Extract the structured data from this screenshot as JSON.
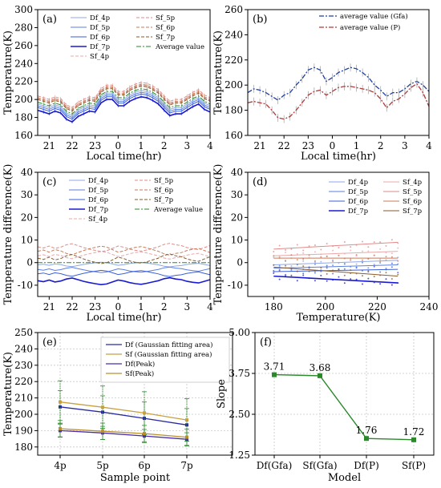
{
  "figure": {
    "colors": {
      "Df_4p": "#8fa6e8",
      "Df_5p": "#5b7fe0",
      "Df_6p": "#3a5fd6",
      "Df_7p": "#1a1ad0",
      "Sf_4p": "#e9a8a8",
      "Sf_5p": "#e08a8a",
      "Sf_6p": "#c97a5a",
      "Sf_7p": "#8a5a2a",
      "Average": "#2a8a2a",
      "Gfa": "#1f3fa0",
      "P": "#b03a3a",
      "DfGfa": "#2a2aa0",
      "SfGfa": "#c8a040",
      "DfPeak": "#4a2ab0",
      "SfPeak": "#b8902a",
      "slope": "#2a8a2a"
    }
  },
  "chart_data": [
    {
      "panel": "(a)",
      "type": "line",
      "xlabel": "Local time(hr)",
      "ylabel": "Temperature(K)",
      "xticks": [
        "21",
        "22",
        "23",
        "0",
        "1",
        "2",
        "3",
        "4"
      ],
      "yticks": [
        "160",
        "180",
        "200",
        "220",
        "240",
        "260",
        "280",
        "300"
      ],
      "xlim": [
        20.5,
        28
      ],
      "ylim": [
        160,
        300
      ],
      "legend": [
        "Df_4p",
        "Df_5p",
        "Df_6p",
        "Df_7p",
        "Sf_4p",
        "Sf_5p",
        "Sf_6p",
        "Sf_7p",
        "Average value"
      ],
      "x": [
        20.5,
        20.75,
        21,
        21.25,
        21.5,
        21.75,
        22,
        22.25,
        22.5,
        22.75,
        23,
        23.25,
        23.5,
        23.75,
        24,
        24.25,
        24.5,
        24.75,
        25,
        25.25,
        25.5,
        25.75,
        26,
        26.25,
        26.5,
        26.75,
        27,
        27.25,
        27.5,
        27.75,
        28
      ],
      "base": [
        197,
        195,
        193,
        196,
        194,
        187,
        184,
        190,
        193,
        196,
        195,
        205,
        209,
        209,
        202,
        202,
        207,
        210,
        212,
        211,
        208,
        204,
        197,
        191,
        193,
        193,
        197,
        201,
        204,
        198,
        195
      ],
      "series": [
        {
          "name": "Df_4p",
          "offset": -2
        },
        {
          "name": "Df_5p",
          "offset": -4
        },
        {
          "name": "Df_6p",
          "offset": -6
        },
        {
          "name": "Df_7p",
          "offset": -9
        },
        {
          "name": "Sf_4p",
          "offset": 4
        },
        {
          "name": "Sf_5p",
          "offset": 7
        },
        {
          "name": "Sf_6p",
          "offset": 5
        },
        {
          "name": "Sf_7p",
          "offset": 3
        },
        {
          "name": "Average value",
          "offset": 0
        }
      ]
    },
    {
      "panel": "(b)",
      "type": "line",
      "xlabel": "Local time(hr)",
      "ylabel": "Temperature(K)",
      "xticks": [
        "21",
        "22",
        "23",
        "0",
        "1",
        "2",
        "3",
        "4"
      ],
      "yticks": [
        "160",
        "180",
        "200",
        "220",
        "240",
        "260"
      ],
      "xlim": [
        20.5,
        28
      ],
      "ylim": [
        160,
        260
      ],
      "legend": [
        "average value (Gfa)",
        "average value (P)"
      ],
      "x": [
        20.5,
        20.75,
        21,
        21.25,
        21.5,
        21.75,
        22,
        22.25,
        22.5,
        22.75,
        23,
        23.25,
        23.5,
        23.75,
        24,
        24.25,
        24.5,
        24.75,
        25,
        25.25,
        25.5,
        25.75,
        26,
        26.25,
        26.5,
        26.75,
        27,
        27.25,
        27.5,
        27.75,
        28
      ],
      "series": [
        {
          "name": "average value (Gfa)",
          "values": [
            194,
            197,
            196,
            194,
            191,
            188,
            192,
            194,
            200,
            205,
            212,
            214,
            212,
            203,
            206,
            210,
            212,
            214,
            213,
            210,
            206,
            200,
            196,
            191,
            194,
            194,
            197,
            201,
            203,
            200,
            195
          ]
        },
        {
          "name": "average value (P)",
          "values": [
            186,
            187,
            186,
            185,
            180,
            174,
            173,
            175,
            180,
            186,
            192,
            195,
            196,
            192,
            195,
            198,
            199,
            199,
            198,
            197,
            196,
            194,
            189,
            182,
            187,
            189,
            193,
            198,
            201,
            194,
            183
          ]
        }
      ]
    },
    {
      "panel": "(c)",
      "type": "line",
      "xlabel": "Local time(hr)",
      "ylabel": "Temperature difference(K)",
      "xticks": [
        "21",
        "22",
        "23",
        "0",
        "1",
        "2",
        "3",
        "4"
      ],
      "yticks": [
        "-10",
        "0",
        "10",
        "20",
        "30",
        "40"
      ],
      "xlim": [
        20.5,
        28
      ],
      "ylim": [
        -15,
        40
      ],
      "legend": [
        "Df_4p",
        "Df_5p",
        "Df_6p",
        "Df_7p",
        "Sf_4p",
        "Sf_5p",
        "Sf_6p",
        "Sf_7p",
        "Average value"
      ],
      "x": [
        20.5,
        20.75,
        21,
        21.25,
        21.5,
        21.75,
        22,
        22.25,
        22.5,
        22.75,
        23,
        23.25,
        23.5,
        23.75,
        24,
        24.25,
        24.5,
        24.75,
        25,
        25.25,
        25.5,
        25.75,
        26,
        26.25,
        26.5,
        26.75,
        27,
        27.25,
        27.5,
        27.75,
        28
      ],
      "wiggle": [
        0,
        0.3,
        -0.2,
        0.4,
        0.1,
        -0.5,
        -0.8,
        -0.3,
        0.2,
        0.6,
        0.9,
        1.2,
        1.0,
        0.4,
        -0.2,
        0.1,
        0.6,
        0.9,
        1.1,
        0.8,
        0.4,
        0.0,
        -0.6,
        -0.9,
        -0.5,
        -0.3,
        0.2,
        0.5,
        0.7,
        0.2,
        -0.3
      ],
      "series": [
        {
          "name": "Df_4p",
          "level": -1
        },
        {
          "name": "Df_5p",
          "level": -3
        },
        {
          "name": "Df_6p",
          "level": -5
        },
        {
          "name": "Df_7p",
          "level": -8
        },
        {
          "name": "Sf_4p",
          "level": 3
        },
        {
          "name": "Sf_5p",
          "level": 7
        },
        {
          "name": "Sf_6p",
          "level": 5
        },
        {
          "name": "Sf_7p",
          "level": 2
        },
        {
          "name": "Average value",
          "level": 0
        }
      ]
    },
    {
      "panel": "(d)",
      "type": "scatter",
      "xlabel": "Temperature(K)",
      "ylabel": "Temperature difference(K)",
      "xticks": [
        "180",
        "200",
        "220",
        "240"
      ],
      "yticks": [
        "-10",
        "0",
        "10",
        "20",
        "30",
        "40"
      ],
      "xlim": [
        170,
        240
      ],
      "ylim": [
        -15,
        40
      ],
      "legend": [
        "Df_4p",
        "Df_5p",
        "Df_6p",
        "Df_7p",
        "Sf_4p",
        "Sf_5p",
        "Sf_6p",
        "Sf_7p"
      ],
      "fit_x": [
        180,
        228
      ],
      "series": [
        {
          "name": "Df_4p",
          "fit": [
            -1,
            1
          ]
        },
        {
          "name": "Df_5p",
          "fit": [
            -2.5,
            -1
          ]
        },
        {
          "name": "Df_6p",
          "fit": [
            -4,
            -3
          ]
        },
        {
          "name": "Df_7p",
          "fit": [
            -6,
            -9
          ]
        },
        {
          "name": "Sf_4p",
          "fit": [
            3,
            5
          ]
        },
        {
          "name": "Sf_5p",
          "fit": [
            6,
            9
          ]
        },
        {
          "name": "Sf_6p",
          "fit": [
            2,
            2
          ]
        },
        {
          "name": "Sf_7p",
          "fit": [
            -2,
            -6
          ]
        }
      ]
    },
    {
      "panel": "(e)",
      "type": "line",
      "xlabel": "Sample point",
      "ylabel": "Temperature(K)",
      "categories": [
        "4p",
        "5p",
        "6p",
        "7p"
      ],
      "yticks": [
        "180",
        "190",
        "200",
        "210",
        "220",
        "230",
        "240",
        "250"
      ],
      "ylim": [
        175,
        250
      ],
      "legend": [
        "Df (Gaussian fitting area)",
        "Sf (Gaussian fitting area)",
        "Df(Peak)",
        "Sf(Peak)"
      ],
      "series": [
        {
          "name": "Df (Gaussian fitting area)",
          "values": [
            204.5,
            201.3,
            197.5,
            193.5
          ],
          "err": 10
        },
        {
          "name": "Sf (Gaussian fitting area)",
          "values": [
            207.5,
            204.3,
            200.8,
            196.5
          ],
          "err": 13
        },
        {
          "name": "Df(Peak)",
          "values": [
            190,
            188.6,
            186.7,
            184.7
          ],
          "err": 4
        },
        {
          "name": "Sf(Peak)",
          "values": [
            191.2,
            189.6,
            188.2,
            186
          ],
          "err": 5
        }
      ]
    },
    {
      "panel": "(f)",
      "type": "line",
      "xlabel": "Model",
      "ylabel": "Slope",
      "categories": [
        "Df(Gfa)",
        "Sf(Gfa)",
        "Df(P)",
        "Sf(P)"
      ],
      "yticks": [
        "1.25",
        "2.50",
        "3.75",
        "5.00"
      ],
      "ylim": [
        1.25,
        5.0
      ],
      "values": [
        3.71,
        3.68,
        1.76,
        1.72
      ],
      "labels": [
        "3.71",
        "3.68",
        "1.76",
        "1.72"
      ]
    }
  ]
}
